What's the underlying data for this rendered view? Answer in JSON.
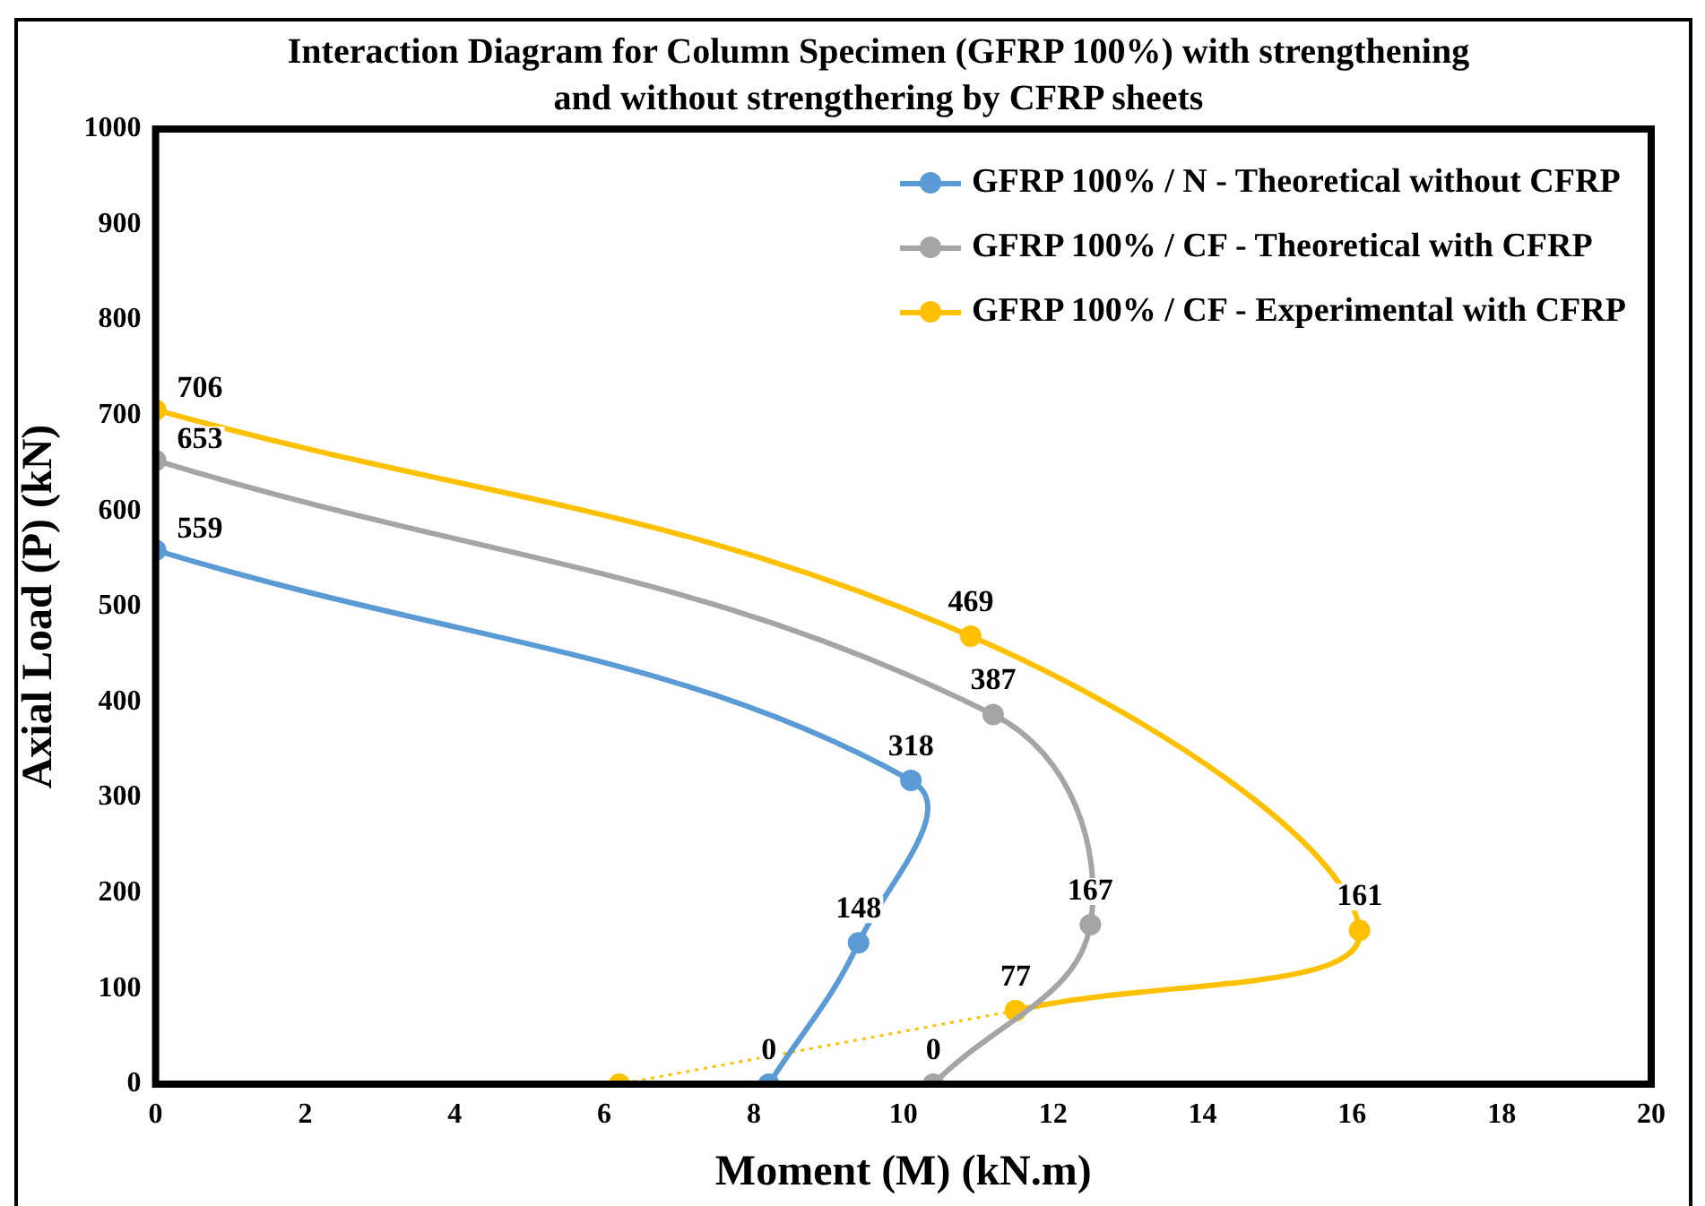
{
  "chart_data": {
    "type": "line",
    "title": "Interaction Diagram for Column Specimen (GFRP 100%) with strengthening and without strengthering by CFRP sheets",
    "xlabel": "Moment (M) (kN.m)",
    "ylabel": "Axial Load (P) (kN)",
    "xlim": [
      0,
      20
    ],
    "xticks": [
      0,
      2,
      4,
      6,
      8,
      10,
      12,
      14,
      16,
      18,
      20
    ],
    "ylim": [
      0,
      1000
    ],
    "yticks": [
      0,
      100,
      200,
      300,
      400,
      500,
      600,
      700,
      800,
      900,
      1000
    ],
    "grid": false,
    "legend": "top right",
    "marker": "circle",
    "series": [
      {
        "name": "GFRP 100% / N - Theoretical without CFRP",
        "color": "#5b9bd5",
        "x": [
          0,
          10.1,
          9.4,
          8.2
        ],
        "values": [
          559,
          318,
          148,
          0
        ],
        "value_labels": [
          "559",
          "318",
          "148",
          "0"
        ]
      },
      {
        "name": "GFRP 100% / CF - Theoretical with CFRP",
        "color": "#a5a5a5",
        "x": [
          0,
          11.2,
          12.5,
          10.4
        ],
        "values": [
          653,
          387,
          167,
          0
        ],
        "value_labels": [
          "653",
          "387",
          "167",
          "0"
        ]
      },
      {
        "name": "GFRP 100% / CF - Experimental with CFRP",
        "color": "#ffc000",
        "x": [
          0,
          10.9,
          16.1,
          11.5
        ],
        "values": [
          706,
          469,
          161,
          77
        ],
        "value_labels": [
          "706",
          "469",
          "161",
          "77"
        ]
      },
      {
        "color": "#ffc000",
        "line_style": "dotted",
        "x": [
          11.5,
          6.2
        ],
        "values": [
          77,
          0
        ],
        "value_labels": [
          null,
          null
        ]
      }
    ]
  }
}
